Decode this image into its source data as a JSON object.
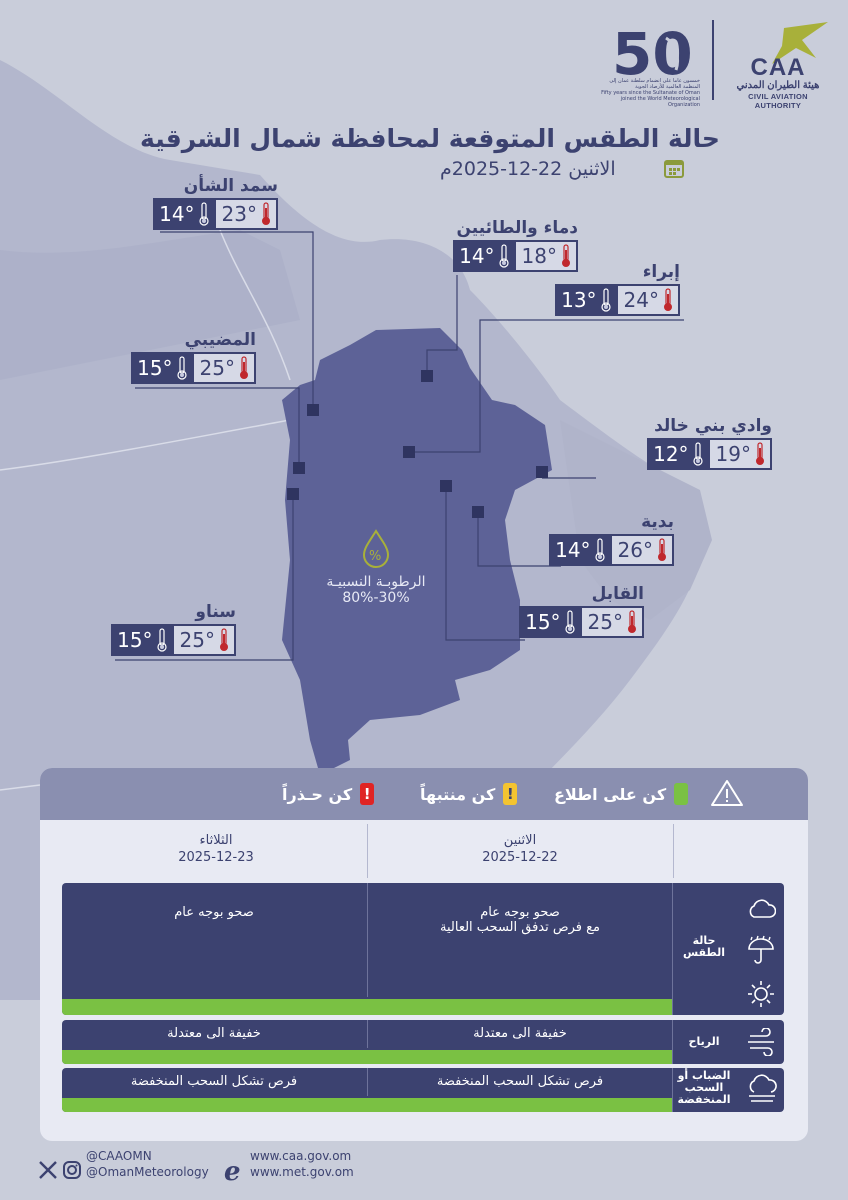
{
  "header": {
    "title": "حالة الطقس المتوقعة لمحافظة شمال الشرقية",
    "date_line": "الاثنين 22-12-2025م",
    "org_abbr": "CAA",
    "org_name_ar": "هيئة الطيران المدني",
    "org_name_en": "CIVIL AVIATION AUTHORITY",
    "anniversary_ar": "خمسون عاما على انضمام سلطنة عمان إلى المنظمة العالمية للأرصاد الجوية",
    "anniversary_en": "Fifty years since the Sultanate of Oman joined the World Meteorological Organization"
  },
  "stations": [
    {
      "name": "سمد الشأن",
      "max": "23°",
      "min": "14°"
    },
    {
      "name": "دماء والطائيين",
      "max": "18°",
      "min": "14°"
    },
    {
      "name": "إبراء",
      "max": "24°",
      "min": "13°"
    },
    {
      "name": "المضيبي",
      "max": "25°",
      "min": "15°"
    },
    {
      "name": "وادي بني خالد",
      "max": "19°",
      "min": "12°"
    },
    {
      "name": "بدية",
      "max": "26°",
      "min": "14°"
    },
    {
      "name": "القابل",
      "max": "25°",
      "min": "15°"
    },
    {
      "name": "سناو",
      "max": "25°",
      "min": "15°"
    }
  ],
  "humidity": {
    "label": "الرطوبـة النسبيـة",
    "value": "80%-30%"
  },
  "legend": {
    "inform": "كن على اطلاع",
    "watch": "كن منتبهاً",
    "warning": "كن حـذراً",
    "colors": {
      "inform": "#7ac143",
      "watch": "#f4c430",
      "warning": "#e02424"
    },
    "icons": {
      "watch": "!",
      "warning": "!"
    }
  },
  "days": [
    {
      "name": "الاثنين",
      "date": "2025-12-22"
    },
    {
      "name": "الثلاثاء",
      "date": "2025-12-23"
    }
  ],
  "rows": {
    "weather": {
      "label": "حالة الطقس",
      "day1_line1": "صحو بوجه عام",
      "day1_line2": "مع فرص تدفق السحب العالية",
      "day2": "صحو بوجه عام"
    },
    "wind": {
      "label": "الرياح",
      "day1": "خفيفة الى معتدلة",
      "day2": "خفيفة الى معتدلة"
    },
    "fog": {
      "label": "الضباب أو السحب المنخفضة",
      "day1": "فرص تشكل السحب المنخفضة",
      "day2": "فرص تشكل السحب المنخفضة"
    }
  },
  "footer": {
    "handle_caa": "@CAAOMN",
    "handle_met": "@OmanMeteorology",
    "site_caa": "www.caa.gov.om",
    "site_met": "www.met.gov.om"
  },
  "colors": {
    "primary": "#3c4270",
    "region": "#5d6297",
    "land": "#b7bbd0",
    "sea": "#c9cdda",
    "green": "#7ac143"
  }
}
